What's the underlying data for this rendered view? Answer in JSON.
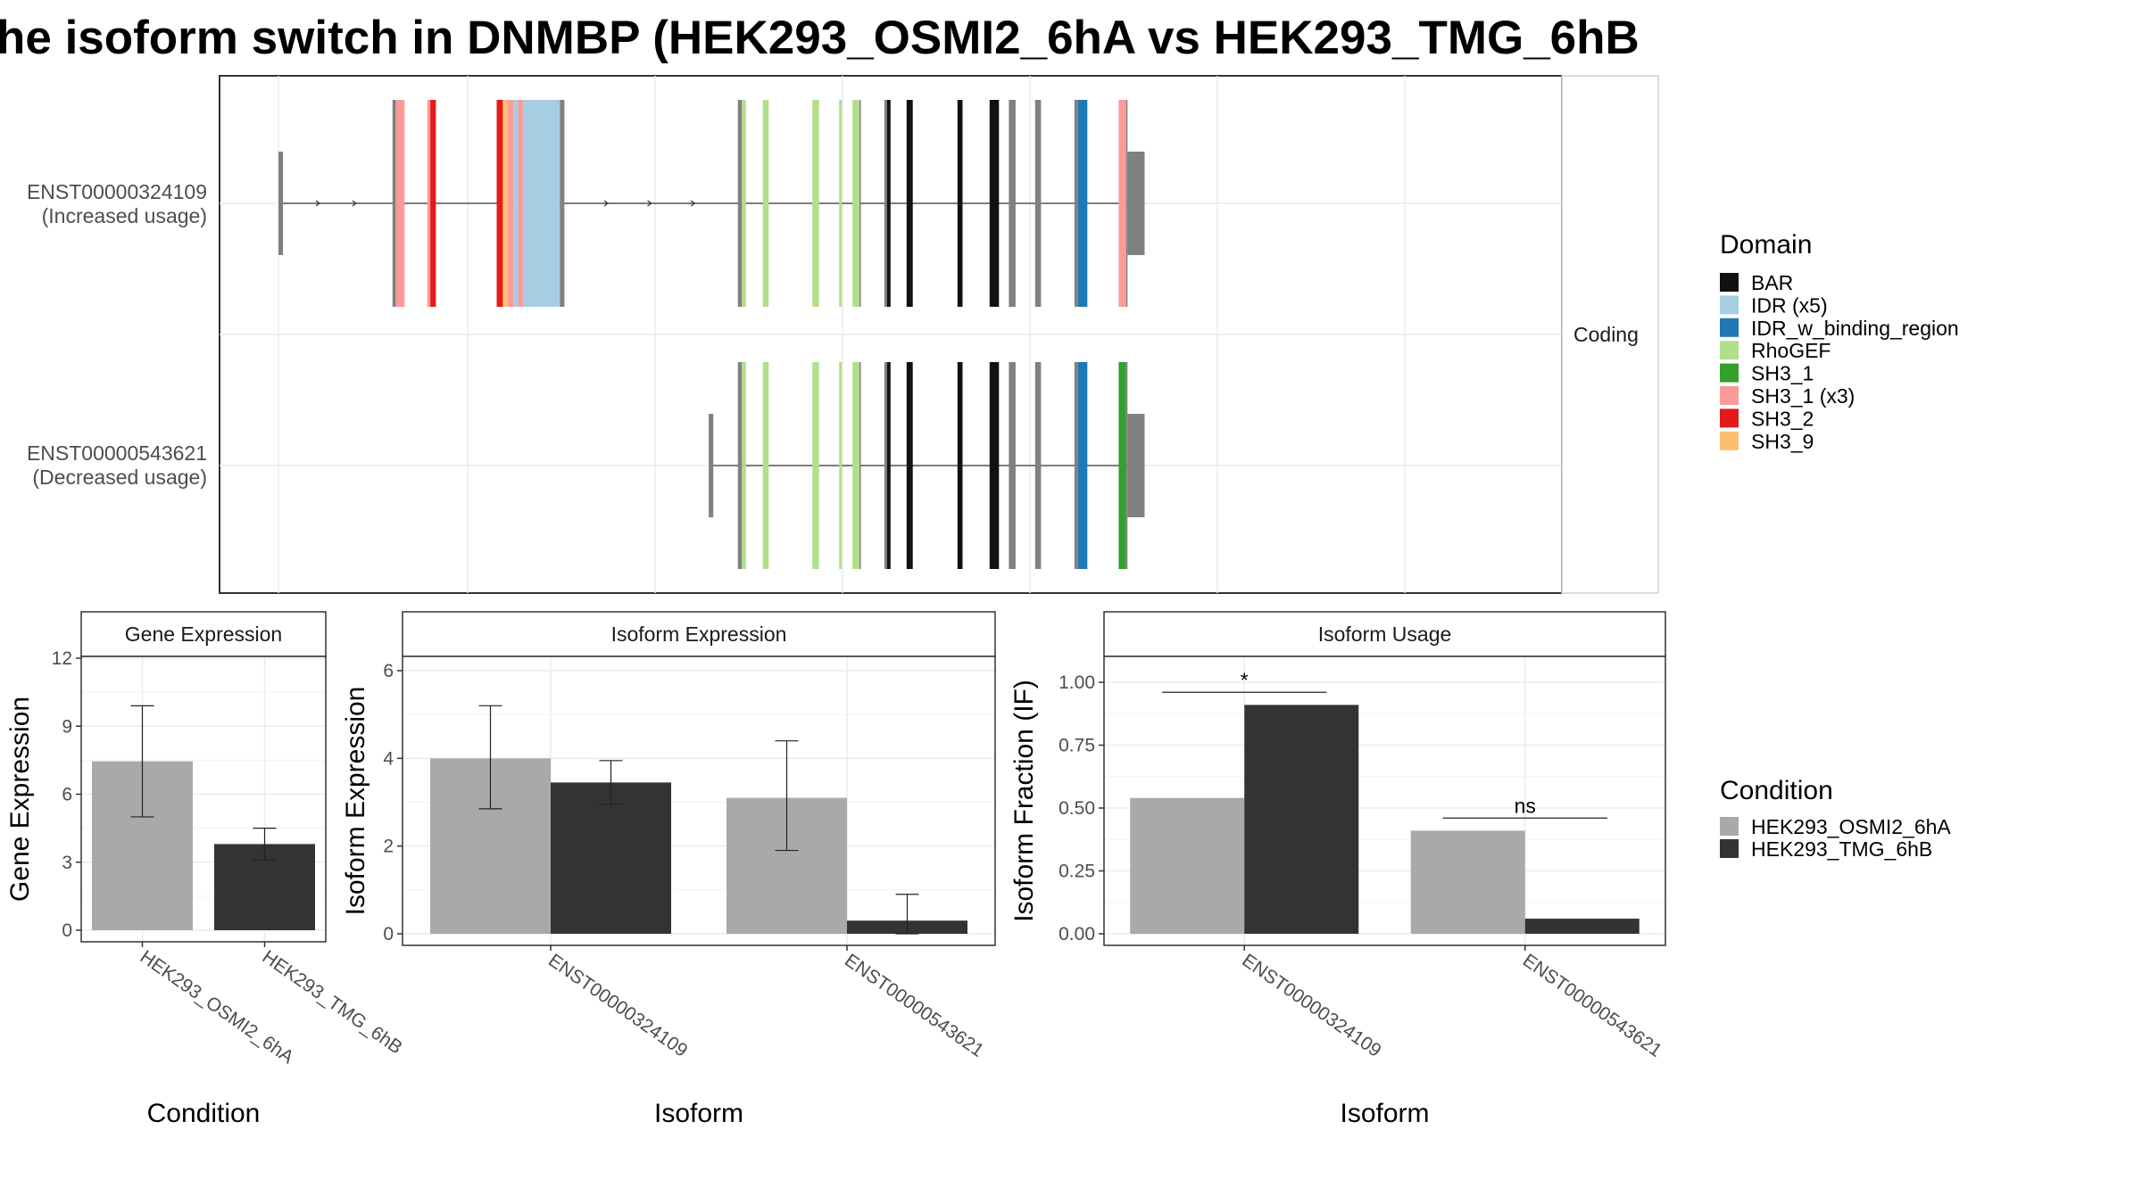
{
  "title": "he isoform switch in DNMBP (HEK293_OSMI2_6hA vs HEK293_TMG_6hB",
  "colors": {
    "cond_a": "#a9a9a9",
    "cond_b": "#333333",
    "utr": "#808080",
    "grid": "#ebebeb"
  },
  "chart_data": [
    {
      "type": "gene-structure",
      "facet_label": "Coding",
      "transcripts": [
        {
          "id": "ENST00000324109",
          "usage": "(Increased usage)",
          "features": [
            {
              "s": 0,
              "e": 1.7,
              "domain": "UTR"
            },
            {
              "s": 42.6,
              "e": 43.8,
              "domain": "UTR"
            },
            {
              "s": 43.8,
              "e": 47.1,
              "domain": "SH3_1 (x3)"
            },
            {
              "s": 55.6,
              "e": 56.7,
              "domain": "SH3_1 (x3)"
            },
            {
              "s": 56.7,
              "e": 58.8,
              "domain": "SH3_2"
            },
            {
              "s": 81.5,
              "e": 83.8,
              "domain": "SH3_2"
            },
            {
              "s": 83.8,
              "e": 85.7,
              "domain": "SH3_9"
            },
            {
              "s": 85.7,
              "e": 87.7,
              "domain": "SH3_1 (x3)"
            },
            {
              "s": 87.7,
              "e": 89.5,
              "domain": "IDR (x5)"
            },
            {
              "s": 89.5,
              "e": 91.3,
              "domain": "SH3_1 (x3)"
            },
            {
              "s": 91.3,
              "e": 105.1,
              "domain": "IDR (x5)"
            },
            {
              "s": 105.1,
              "e": 106.8,
              "domain": "UTR"
            },
            {
              "s": 171.6,
              "e": 173.1,
              "domain": "UTR"
            },
            {
              "s": 173.1,
              "e": 174.6,
              "domain": "RhoGEF"
            },
            {
              "s": 180.9,
              "e": 183.1,
              "domain": "RhoGEF"
            },
            {
              "s": 199.4,
              "e": 201.9,
              "domain": "RhoGEF"
            },
            {
              "s": 209.4,
              "e": 210.4,
              "domain": "RhoGEF"
            },
            {
              "s": 214.4,
              "e": 217.0,
              "domain": "RhoGEF"
            },
            {
              "s": 217.0,
              "e": 217.5,
              "domain": "UTR"
            },
            {
              "s": 226.3,
              "e": 227.3,
              "domain": "UTR"
            },
            {
              "s": 227.3,
              "e": 228.6,
              "domain": "BAR"
            },
            {
              "s": 234.6,
              "e": 236.9,
              "domain": "BAR"
            },
            {
              "s": 253.6,
              "e": 255.5,
              "domain": "BAR"
            },
            {
              "s": 265.6,
              "e": 269.1,
              "domain": "BAR"
            },
            {
              "s": 272.8,
              "e": 275.3,
              "domain": "UTR"
            },
            {
              "s": 282.6,
              "e": 284.8,
              "domain": "UTR"
            },
            {
              "s": 297.3,
              "e": 298.6,
              "domain": "UTR"
            },
            {
              "s": 298.6,
              "e": 302.1,
              "domain": "IDR_w_binding_region"
            },
            {
              "s": 313.8,
              "e": 316.6,
              "domain": "SH3_1 (x3)"
            },
            {
              "s": 316.6,
              "e": 317.1,
              "domain": "UTR"
            },
            {
              "s": 317.1,
              "e": 323.5,
              "domain": "UTR-wide"
            }
          ]
        },
        {
          "id": "ENST00000543621",
          "usage": "(Decreased usage)",
          "features": [
            {
              "s": 160.7,
              "e": 162.4,
              "domain": "UTR"
            },
            {
              "s": 171.6,
              "e": 173.1,
              "domain": "UTR"
            },
            {
              "s": 173.1,
              "e": 174.6,
              "domain": "RhoGEF"
            },
            {
              "s": 180.9,
              "e": 183.1,
              "domain": "RhoGEF"
            },
            {
              "s": 199.4,
              "e": 201.9,
              "domain": "RhoGEF"
            },
            {
              "s": 209.4,
              "e": 210.4,
              "domain": "RhoGEF"
            },
            {
              "s": 214.4,
              "e": 217.0,
              "domain": "RhoGEF"
            },
            {
              "s": 217.0,
              "e": 217.5,
              "domain": "UTR"
            },
            {
              "s": 226.3,
              "e": 227.3,
              "domain": "UTR"
            },
            {
              "s": 227.3,
              "e": 228.6,
              "domain": "BAR"
            },
            {
              "s": 234.6,
              "e": 236.9,
              "domain": "BAR"
            },
            {
              "s": 253.6,
              "e": 255.5,
              "domain": "BAR"
            },
            {
              "s": 265.6,
              "e": 269.1,
              "domain": "BAR"
            },
            {
              "s": 272.8,
              "e": 275.3,
              "domain": "UTR"
            },
            {
              "s": 282.6,
              "e": 284.8,
              "domain": "UTR"
            },
            {
              "s": 297.3,
              "e": 298.6,
              "domain": "UTR"
            },
            {
              "s": 298.6,
              "e": 302.1,
              "domain": "IDR_w_binding_region"
            },
            {
              "s": 313.8,
              "e": 316.6,
              "domain": "SH3_1"
            },
            {
              "s": 316.6,
              "e": 317.1,
              "domain": "UTR"
            },
            {
              "s": 317.1,
              "e": 323.5,
              "domain": "UTR-wide"
            }
          ]
        }
      ],
      "legend": {
        "title": "Domain",
        "items": [
          {
            "label": "BAR",
            "color": "#111111"
          },
          {
            "label": "IDR (x5)",
            "color": "#a6cee3"
          },
          {
            "label": "IDR_w_binding_region",
            "color": "#1f78b4"
          },
          {
            "label": "RhoGEF",
            "color": "#b2df8a"
          },
          {
            "label": "SH3_1",
            "color": "#33a02c"
          },
          {
            "label": "SH3_1 (x3)",
            "color": "#fb9a99"
          },
          {
            "label": "SH3_2",
            "color": "#e31a1c"
          },
          {
            "label": "SH3_9",
            "color": "#fdbf6f"
          }
        ]
      }
    },
    {
      "type": "bar",
      "strip": "Gene Expression",
      "xlabel": "Condition",
      "ylabel": "Gene Expression",
      "ylim": [
        0,
        12
      ],
      "yticks": [
        "0",
        "3",
        "6",
        "9",
        "12"
      ],
      "categories": [
        "HEK293_OSMI2_6hA",
        "HEK293_TMG_6hB"
      ],
      "values": [
        7.45,
        3.8
      ],
      "error": [
        [
          5.0,
          9.9
        ],
        [
          3.1,
          4.5
        ]
      ]
    },
    {
      "type": "bar",
      "strip": "Isoform Expression",
      "xlabel": "Isoform",
      "ylabel": "Isoform Expression",
      "ylim": [
        0,
        6
      ],
      "yticks": [
        "0",
        "2",
        "4",
        "6"
      ],
      "categories": [
        "ENST00000324109",
        "ENST00000543621"
      ],
      "series": [
        {
          "name": "HEK293_OSMI2_6hA",
          "values": [
            4.0,
            3.1
          ],
          "error": [
            [
              2.85,
              5.2
            ],
            [
              1.9,
              4.4
            ]
          ]
        },
        {
          "name": "HEK293_TMG_6hB",
          "values": [
            3.45,
            0.3
          ],
          "error": [
            [
              2.95,
              3.95
            ],
            [
              0.0,
              0.9
            ]
          ]
        }
      ]
    },
    {
      "type": "bar",
      "strip": "Isoform Usage",
      "xlabel": "Isoform",
      "ylabel": "Isoform Fraction (IF)",
      "ylim": [
        0,
        1
      ],
      "yticks": [
        "0.00",
        "0.25",
        "0.50",
        "0.75",
        "1.00"
      ],
      "categories": [
        "ENST00000324109",
        "ENST00000543621"
      ],
      "series": [
        {
          "name": "HEK293_OSMI2_6hA",
          "values": [
            0.54,
            0.41
          ]
        },
        {
          "name": "HEK293_TMG_6hB",
          "values": [
            0.91,
            0.06
          ]
        }
      ],
      "significance": [
        {
          "label": "*",
          "y": 0.96
        },
        {
          "label": "ns",
          "y": 0.46
        }
      ]
    }
  ],
  "condition_legend": {
    "title": "Condition",
    "items": [
      "HEK293_OSMI2_6hA",
      "HEK293_TMG_6hB"
    ]
  }
}
